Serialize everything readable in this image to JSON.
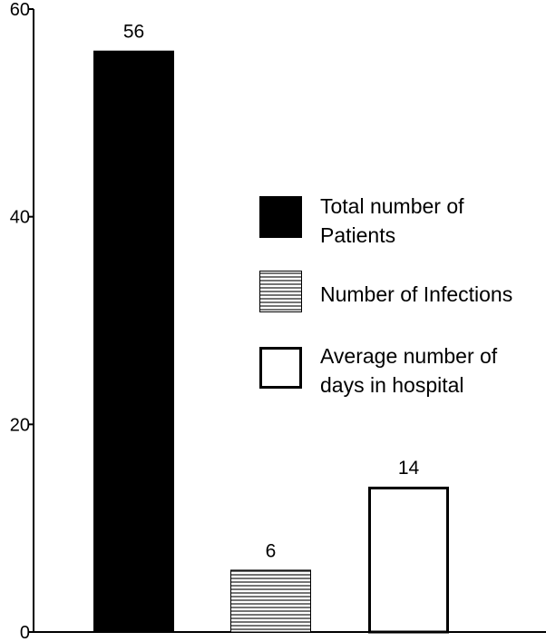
{
  "chart_data": {
    "type": "bar",
    "categories": [
      "Total number of Patients",
      "Number of Infections",
      "Average number of days in hospital"
    ],
    "values": [
      56,
      6,
      14
    ],
    "data_labels": [
      "56",
      "6",
      "14"
    ],
    "ylim": [
      0,
      60
    ],
    "yticks": [
      0,
      20,
      40,
      60
    ],
    "ytick_labels": [
      "0",
      "20",
      "40",
      "60"
    ],
    "grid": false,
    "legend": {
      "placement": "right",
      "entries": [
        {
          "lines": [
            "Total number of",
            "Patients"
          ],
          "fill": "solid-black"
        },
        {
          "lines": [
            "Number of Infections"
          ],
          "fill": "horizontal-hatch"
        },
        {
          "lines": [
            "Average number of",
            "days in hospital"
          ],
          "fill": "white"
        }
      ]
    },
    "colors": {
      "bar_black": "#000000",
      "hatch": "#000000",
      "white": "#ffffff",
      "axis": "#000000"
    }
  }
}
